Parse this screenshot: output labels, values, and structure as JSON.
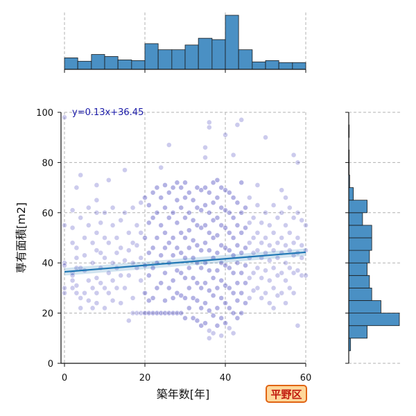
{
  "chart_data": {
    "type": "scatter",
    "xlabel": "築年数[年]",
    "ylabel": "専有面積[m2]",
    "xlim": [
      0,
      60
    ],
    "ylim": [
      0,
      100
    ],
    "xticks": [
      0,
      20,
      40,
      60
    ],
    "yticks": [
      0,
      20,
      40,
      60,
      80,
      100
    ],
    "grid": true,
    "regression": {
      "label": "y=0.13x+36.45",
      "slope": 0.13,
      "intercept": 36.45
    },
    "badge": "平野区",
    "point_color": "#3a36b8",
    "line_color": "#1f77b4",
    "hist_color": "#4a90c4",
    "top_histogram": {
      "bin_edges": [
        0,
        3.3,
        6.7,
        10,
        13.3,
        16.7,
        20,
        23.3,
        26.7,
        30,
        33.3,
        36.7,
        40,
        43.3,
        46.7,
        50,
        53.3,
        56.7,
        60
      ],
      "counts": [
        17,
        12,
        22,
        19,
        14,
        13,
        38,
        29,
        29,
        36,
        46,
        44,
        80,
        29,
        11,
        13,
        10,
        10
      ]
    },
    "right_histogram": {
      "bin_edges": [
        5,
        10,
        15,
        20,
        25,
        30,
        35,
        40,
        45,
        50,
        55,
        60,
        65,
        70,
        75,
        80,
        85,
        90,
        95,
        100
      ],
      "counts": [
        4,
        40,
        110,
        70,
        50,
        45,
        40,
        45,
        50,
        50,
        30,
        40,
        10,
        2,
        1,
        1,
        0,
        1,
        0
      ]
    },
    "points": [
      [
        0,
        55
      ],
      [
        0,
        40
      ],
      [
        0,
        39
      ],
      [
        0,
        30
      ],
      [
        0,
        28
      ],
      [
        0,
        98
      ],
      [
        2,
        61
      ],
      [
        2,
        54
      ],
      [
        2,
        48
      ],
      [
        2,
        36
      ],
      [
        2,
        35
      ],
      [
        2,
        33
      ],
      [
        2,
        30
      ],
      [
        3,
        46
      ],
      [
        3,
        42
      ],
      [
        3,
        38
      ],
      [
        3,
        31
      ],
      [
        3,
        28
      ],
      [
        3,
        70
      ],
      [
        4,
        75
      ],
      [
        4,
        58
      ],
      [
        4,
        38
      ],
      [
        4,
        26
      ],
      [
        4,
        22
      ],
      [
        5,
        50
      ],
      [
        5,
        43
      ],
      [
        5,
        37
      ],
      [
        5,
        28
      ],
      [
        6,
        62
      ],
      [
        6,
        55
      ],
      [
        6,
        33
      ],
      [
        6,
        25
      ],
      [
        7,
        48
      ],
      [
        7,
        40
      ],
      [
        7,
        30
      ],
      [
        7,
        22
      ],
      [
        8,
        71
      ],
      [
        8,
        65
      ],
      [
        8,
        60
      ],
      [
        8,
        52
      ],
      [
        8,
        45
      ],
      [
        8,
        34
      ],
      [
        8,
        28
      ],
      [
        8,
        24
      ],
      [
        9,
        56
      ],
      [
        9,
        44
      ],
      [
        9,
        38
      ],
      [
        9,
        32
      ],
      [
        10,
        60
      ],
      [
        10,
        50
      ],
      [
        10,
        42
      ],
      [
        10,
        30
      ],
      [
        10,
        22
      ],
      [
        11,
        73
      ],
      [
        11,
        48
      ],
      [
        11,
        36
      ],
      [
        11,
        28
      ],
      [
        12,
        62
      ],
      [
        12,
        55
      ],
      [
        12,
        40
      ],
      [
        12,
        33
      ],
      [
        12,
        25
      ],
      [
        13,
        50
      ],
      [
        13,
        44
      ],
      [
        13,
        38
      ],
      [
        13,
        30
      ],
      [
        14,
        57
      ],
      [
        14,
        46
      ],
      [
        14,
        35
      ],
      [
        14,
        24
      ],
      [
        15,
        77
      ],
      [
        15,
        60
      ],
      [
        15,
        41
      ],
      [
        15,
        30
      ],
      [
        16,
        52
      ],
      [
        16,
        45
      ],
      [
        16,
        35
      ],
      [
        16,
        17
      ],
      [
        17,
        62
      ],
      [
        17,
        48
      ],
      [
        17,
        40
      ],
      [
        17,
        26
      ],
      [
        17,
        20
      ],
      [
        18,
        55
      ],
      [
        18,
        47
      ],
      [
        18,
        38
      ],
      [
        18,
        20
      ],
      [
        19,
        64
      ],
      [
        19,
        52
      ],
      [
        19,
        42
      ],
      [
        19,
        33
      ],
      [
        19,
        20
      ],
      [
        20,
        66
      ],
      [
        20,
        50
      ],
      [
        20,
        39
      ],
      [
        20,
        28
      ],
      [
        20,
        20
      ],
      [
        21,
        63
      ],
      [
        21,
        56
      ],
      [
        21,
        44
      ],
      [
        21,
        35
      ],
      [
        21,
        25
      ],
      [
        21,
        20
      ],
      [
        22,
        68
      ],
      [
        22,
        58
      ],
      [
        22,
        46
      ],
      [
        22,
        38
      ],
      [
        22,
        26
      ],
      [
        22,
        20
      ],
      [
        23,
        70
      ],
      [
        23,
        60
      ],
      [
        23,
        50
      ],
      [
        23,
        40
      ],
      [
        23,
        30
      ],
      [
        23,
        20
      ],
      [
        24,
        78
      ],
      [
        24,
        66
      ],
      [
        24,
        55
      ],
      [
        24,
        43
      ],
      [
        24,
        32
      ],
      [
        24,
        20
      ],
      [
        25,
        71
      ],
      [
        25,
        62
      ],
      [
        25,
        52
      ],
      [
        25,
        46
      ],
      [
        25,
        36
      ],
      [
        25,
        25
      ],
      [
        25,
        20
      ],
      [
        26,
        87
      ],
      [
        26,
        68
      ],
      [
        26,
        58
      ],
      [
        26,
        48
      ],
      [
        26,
        40
      ],
      [
        26,
        30
      ],
      [
        26,
        20
      ],
      [
        27,
        70
      ],
      [
        27,
        60
      ],
      [
        27,
        50
      ],
      [
        27,
        43
      ],
      [
        27,
        33
      ],
      [
        27,
        26
      ],
      [
        27,
        20
      ],
      [
        28,
        72
      ],
      [
        28,
        65
      ],
      [
        28,
        56
      ],
      [
        28,
        46
      ],
      [
        28,
        37
      ],
      [
        28,
        28
      ],
      [
        28,
        20
      ],
      [
        29,
        70
      ],
      [
        29,
        62
      ],
      [
        29,
        52
      ],
      [
        29,
        44
      ],
      [
        29,
        36
      ],
      [
        29,
        27
      ],
      [
        29,
        20
      ],
      [
        30,
        72
      ],
      [
        30,
        66
      ],
      [
        30,
        58
      ],
      [
        30,
        50
      ],
      [
        30,
        42
      ],
      [
        30,
        34
      ],
      [
        30,
        26
      ],
      [
        30,
        18
      ],
      [
        31,
        68
      ],
      [
        31,
        60
      ],
      [
        31,
        53
      ],
      [
        31,
        46
      ],
      [
        31,
        38
      ],
      [
        31,
        30
      ],
      [
        31,
        22
      ],
      [
        32,
        65
      ],
      [
        32,
        57
      ],
      [
        32,
        49
      ],
      [
        32,
        42
      ],
      [
        32,
        34
      ],
      [
        32,
        26
      ],
      [
        32,
        18
      ],
      [
        33,
        70
      ],
      [
        33,
        62
      ],
      [
        33,
        55
      ],
      [
        33,
        47
      ],
      [
        33,
        40
      ],
      [
        33,
        32
      ],
      [
        33,
        25
      ],
      [
        33,
        17
      ],
      [
        34,
        69
      ],
      [
        34,
        61
      ],
      [
        34,
        54
      ],
      [
        34,
        45
      ],
      [
        34,
        38
      ],
      [
        34,
        30
      ],
      [
        34,
        22
      ],
      [
        34,
        15
      ],
      [
        35,
        86
      ],
      [
        35,
        82
      ],
      [
        35,
        70
      ],
      [
        35,
        63
      ],
      [
        35,
        55
      ],
      [
        35,
        48
      ],
      [
        35,
        40
      ],
      [
        35,
        32
      ],
      [
        35,
        24
      ],
      [
        35,
        16
      ],
      [
        36,
        96
      ],
      [
        36,
        94
      ],
      [
        36,
        68
      ],
      [
        36,
        60
      ],
      [
        36,
        52
      ],
      [
        36,
        45
      ],
      [
        36,
        37
      ],
      [
        36,
        29
      ],
      [
        36,
        21
      ],
      [
        36,
        13
      ],
      [
        36,
        10
      ],
      [
        37,
        72
      ],
      [
        37,
        64
      ],
      [
        37,
        57
      ],
      [
        37,
        50
      ],
      [
        37,
        42
      ],
      [
        37,
        34
      ],
      [
        37,
        27
      ],
      [
        37,
        19
      ],
      [
        37,
        12
      ],
      [
        38,
        73
      ],
      [
        38,
        66
      ],
      [
        38,
        58
      ],
      [
        38,
        51
      ],
      [
        38,
        44
      ],
      [
        38,
        37
      ],
      [
        38,
        30
      ],
      [
        38,
        22
      ],
      [
        38,
        15
      ],
      [
        39,
        70
      ],
      [
        39,
        62
      ],
      [
        39,
        55
      ],
      [
        39,
        47
      ],
      [
        39,
        40
      ],
      [
        39,
        33
      ],
      [
        39,
        26
      ],
      [
        39,
        18
      ],
      [
        39,
        11
      ],
      [
        40,
        91
      ],
      [
        40,
        69
      ],
      [
        40,
        61
      ],
      [
        40,
        54
      ],
      [
        40,
        46
      ],
      [
        40,
        39
      ],
      [
        40,
        31
      ],
      [
        40,
        24
      ],
      [
        40,
        16
      ],
      [
        41,
        68
      ],
      [
        41,
        60
      ],
      [
        41,
        52
      ],
      [
        41,
        45
      ],
      [
        41,
        38
      ],
      [
        41,
        30
      ],
      [
        41,
        22
      ],
      [
        41,
        14
      ],
      [
        42,
        83
      ],
      [
        42,
        66
      ],
      [
        42,
        58
      ],
      [
        42,
        50
      ],
      [
        42,
        43
      ],
      [
        42,
        36
      ],
      [
        42,
        28
      ],
      [
        42,
        20
      ],
      [
        42,
        12
      ],
      [
        43,
        95
      ],
      [
        43,
        64
      ],
      [
        43,
        55
      ],
      [
        43,
        47
      ],
      [
        43,
        40
      ],
      [
        43,
        32
      ],
      [
        43,
        25
      ],
      [
        43,
        18
      ],
      [
        44,
        97
      ],
      [
        44,
        72
      ],
      [
        44,
        60
      ],
      [
        44,
        52
      ],
      [
        44,
        44
      ],
      [
        44,
        36
      ],
      [
        44,
        28
      ],
      [
        44,
        20
      ],
      [
        45,
        62
      ],
      [
        45,
        54
      ],
      [
        45,
        46
      ],
      [
        45,
        39
      ],
      [
        45,
        32
      ],
      [
        45,
        24
      ],
      [
        46,
        66
      ],
      [
        46,
        56
      ],
      [
        46,
        48
      ],
      [
        46,
        42
      ],
      [
        46,
        34
      ],
      [
        46,
        26
      ],
      [
        47,
        58
      ],
      [
        47,
        50
      ],
      [
        47,
        44
      ],
      [
        47,
        36
      ],
      [
        47,
        29
      ],
      [
        48,
        71
      ],
      [
        48,
        63
      ],
      [
        48,
        52
      ],
      [
        48,
        45
      ],
      [
        48,
        38
      ],
      [
        48,
        30
      ],
      [
        49,
        56
      ],
      [
        49,
        48
      ],
      [
        49,
        42
      ],
      [
        49,
        34
      ],
      [
        49,
        26
      ],
      [
        50,
        90
      ],
      [
        50,
        60
      ],
      [
        50,
        50
      ],
      [
        50,
        44
      ],
      [
        50,
        37
      ],
      [
        50,
        28
      ],
      [
        51,
        55
      ],
      [
        51,
        47
      ],
      [
        51,
        41
      ],
      [
        51,
        33
      ],
      [
        51,
        24
      ],
      [
        52,
        63
      ],
      [
        52,
        52
      ],
      [
        52,
        45
      ],
      [
        52,
        38
      ],
      [
        52,
        30
      ],
      [
        52,
        22
      ],
      [
        53,
        58
      ],
      [
        53,
        48
      ],
      [
        53,
        42
      ],
      [
        53,
        35
      ],
      [
        53,
        27
      ],
      [
        54,
        69
      ],
      [
        54,
        60
      ],
      [
        54,
        50
      ],
      [
        54,
        44
      ],
      [
        54,
        36
      ],
      [
        54,
        28
      ],
      [
        55,
        66
      ],
      [
        55,
        55
      ],
      [
        55,
        47
      ],
      [
        55,
        40
      ],
      [
        55,
        33
      ],
      [
        55,
        24
      ],
      [
        56,
        62
      ],
      [
        56,
        52
      ],
      [
        56,
        45
      ],
      [
        56,
        38
      ],
      [
        56,
        30
      ],
      [
        57,
        83
      ],
      [
        57,
        58
      ],
      [
        57,
        48
      ],
      [
        57,
        43
      ],
      [
        57,
        36
      ],
      [
        57,
        28
      ],
      [
        58,
        80
      ],
      [
        58,
        60
      ],
      [
        58,
        50
      ],
      [
        58,
        44
      ],
      [
        58,
        37
      ],
      [
        58,
        15
      ],
      [
        59,
        57
      ],
      [
        59,
        47
      ],
      [
        59,
        42
      ],
      [
        59,
        35
      ],
      [
        60,
        55
      ],
      [
        60,
        45
      ],
      [
        60,
        35
      ]
    ]
  }
}
